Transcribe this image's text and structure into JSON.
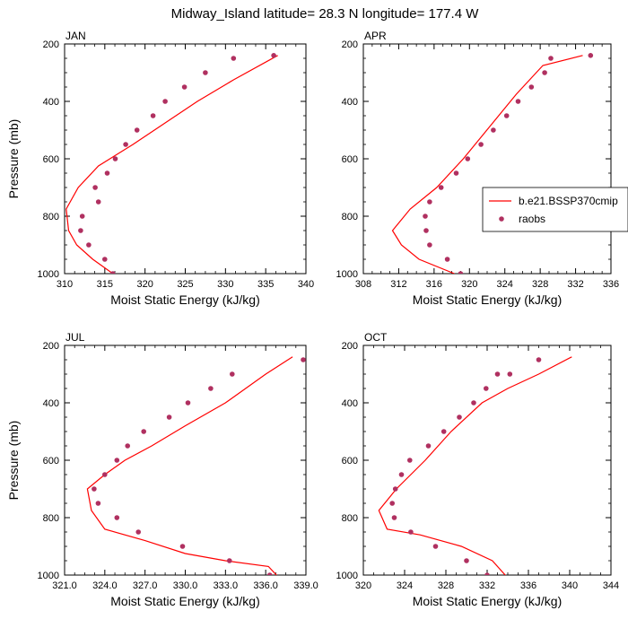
{
  "figure": {
    "title": "Midway_Island  latitude= 28.3 N longitude= 177.4 W"
  },
  "legend": {
    "placement": "right of APR panel",
    "entries": [
      {
        "name": "b.e21.BSSP370cmip",
        "style": "line",
        "color": "#ff0000"
      },
      {
        "name": "raobs",
        "style": "marker",
        "color": "#b03060"
      }
    ]
  },
  "chart_data": [
    {
      "type": "line",
      "panel": "JAN",
      "xlabel": "Moist Static Energy (kJ/kg)",
      "ylabel": "Pressure (mb)",
      "xlim": [
        310,
        340
      ],
      "ylim": [
        1000,
        200
      ],
      "xticks": [
        310,
        315,
        320,
        325,
        330,
        335,
        340
      ],
      "xtick_labels": [
        "310",
        "315",
        "320",
        "325",
        "330",
        "335",
        "340"
      ],
      "yticks": [
        200,
        400,
        600,
        800,
        1000
      ],
      "grid": false,
      "series": [
        {
          "name": "b.e21.BSSP370cmip",
          "kind": "line",
          "x": [
            316.0,
            313.5,
            311.5,
            310.5,
            310.2,
            311.7,
            314.2,
            318.5,
            322.5,
            326.5,
            331.0,
            336.5
          ],
          "y": [
            1000,
            950,
            900,
            850,
            775,
            700,
            625,
            550,
            475,
            400,
            325,
            240
          ]
        },
        {
          "name": "raobs",
          "kind": "scatter",
          "x": [
            316.0,
            315.0,
            313.0,
            312.0,
            312.2,
            313.8,
            314.2,
            315.3,
            316.3,
            317.6,
            319.0,
            321.0,
            322.5,
            324.9,
            327.5,
            331.0,
            336.0
          ],
          "y": [
            1000,
            950,
            900,
            850,
            800,
            700,
            750,
            650,
            600,
            550,
            500,
            450,
            400,
            350,
            300,
            250,
            240
          ]
        }
      ]
    },
    {
      "type": "line",
      "panel": "APR",
      "xlabel": "Moist Static Energy (kJ/kg)",
      "ylabel": "",
      "xlim": [
        308,
        336
      ],
      "ylim": [
        1000,
        200
      ],
      "xticks": [
        308,
        312,
        316,
        320,
        324,
        328,
        332,
        336
      ],
      "xtick_labels": [
        "308",
        "312",
        "316",
        "320",
        "324",
        "328",
        "332",
        "336"
      ],
      "yticks": [
        200,
        400,
        600,
        800,
        1000
      ],
      "grid": false,
      "series": [
        {
          "name": "b.e21.BSSP370cmip",
          "kind": "line",
          "x": [
            318.3,
            314.3,
            312.3,
            311.3,
            313.3,
            316.3,
            319.3,
            321.3,
            323.3,
            325.3,
            328.3,
            332.8
          ],
          "y": [
            1000,
            950,
            900,
            850,
            775,
            700,
            600,
            525,
            450,
            375,
            275,
            240
          ]
        },
        {
          "name": "raobs",
          "kind": "scatter",
          "x": [
            319.0,
            317.5,
            315.5,
            315.1,
            315.0,
            315.5,
            316.8,
            318.5,
            319.8,
            321.3,
            322.7,
            324.2,
            325.5,
            327.0,
            328.5,
            329.2,
            333.7
          ],
          "y": [
            1000,
            950,
            900,
            850,
            800,
            750,
            700,
            650,
            600,
            550,
            500,
            450,
            400,
            350,
            300,
            250,
            240
          ]
        }
      ]
    },
    {
      "type": "line",
      "panel": "JUL",
      "xlabel": "Moist Static Energy (kJ/kg)",
      "ylabel": "Pressure (mb)",
      "xlim": [
        321.0,
        339.0
      ],
      "ylim": [
        1000,
        200
      ],
      "xticks": [
        321.0,
        324.0,
        327.0,
        330.0,
        333.0,
        336.0,
        339.0
      ],
      "xtick_labels": [
        "321.0",
        "324.0",
        "327.0",
        "330.0",
        "333.0",
        "336.0",
        "339.0"
      ],
      "yticks": [
        200,
        400,
        600,
        800,
        1000
      ],
      "grid": false,
      "series": [
        {
          "name": "b.e21.BSSP370cmip",
          "kind": "line",
          "x": [
            337.2,
            336.2,
            333.0,
            330.0,
            327.0,
            324.0,
            323.0,
            322.7,
            324.0,
            325.5,
            327.5,
            330.0,
            333.0,
            336.0,
            338.0
          ],
          "y": [
            1020,
            970,
            950,
            925,
            880,
            840,
            775,
            700,
            650,
            600,
            550,
            480,
            400,
            300,
            240
          ]
        },
        {
          "name": "raobs",
          "kind": "scatter",
          "x": [
            336.3,
            333.3,
            329.8,
            326.5,
            324.9,
            323.5,
            323.2,
            324.0,
            324.9,
            325.7,
            326.9,
            328.8,
            330.2,
            331.9,
            333.5,
            338.8
          ],
          "y": [
            1000,
            950,
            900,
            850,
            800,
            750,
            700,
            650,
            600,
            550,
            500,
            450,
            400,
            350,
            300,
            250
          ]
        }
      ]
    },
    {
      "type": "line",
      "panel": "OCT",
      "xlabel": "Moist Static Energy (kJ/kg)",
      "ylabel": "",
      "xlim": [
        320,
        344
      ],
      "ylim": [
        1000,
        200
      ],
      "xticks": [
        320,
        324,
        328,
        332,
        336,
        340,
        344
      ],
      "xtick_labels": [
        "320",
        "324",
        "328",
        "332",
        "336",
        "340",
        "344"
      ],
      "yticks": [
        200,
        400,
        600,
        800,
        1000
      ],
      "grid": false,
      "series": [
        {
          "name": "b.e21.BSSP370cmip",
          "kind": "line",
          "x": [
            334.0,
            332.5,
            329.5,
            325.5,
            322.3,
            321.5,
            323.2,
            326.0,
            328.5,
            331.5,
            334.0,
            337.0,
            340.2
          ],
          "y": [
            1010,
            950,
            900,
            860,
            840,
            775,
            700,
            600,
            500,
            400,
            350,
            300,
            240
          ]
        },
        {
          "name": "raobs",
          "kind": "scatter",
          "x": [
            332.0,
            330.0,
            327.0,
            324.6,
            323.0,
            322.8,
            323.1,
            323.7,
            324.5,
            326.3,
            327.8,
            329.3,
            330.7,
            331.9,
            333.0,
            334.2,
            337.0
          ],
          "y": [
            1000,
            950,
            900,
            850,
            800,
            750,
            700,
            650,
            600,
            550,
            500,
            450,
            400,
            350,
            300,
            300,
            250
          ]
        }
      ]
    }
  ]
}
